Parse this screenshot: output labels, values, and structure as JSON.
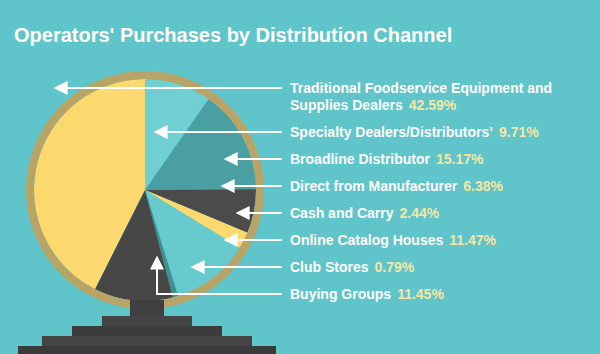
{
  "chart_data": {
    "type": "pie",
    "title": "Operators' Purchases by Distribution Channel",
    "categories": [
      "Traditional Foodservice Equipment and Supplies Dealers",
      "Specialty Dealers/Distributors’",
      "Broadline Distributor",
      "Direct from Manufacturer",
      "Cash and Carry",
      "Online Catalog Houses",
      "Club Stores",
      "Buying Groups"
    ],
    "values": [
      42.59,
      9.71,
      15.17,
      6.38,
      2.44,
      11.47,
      0.79,
      11.45
    ],
    "value_labels": [
      "42.59%",
      "9.71%",
      "15.17%",
      "6.38%",
      "2.44%",
      "11.47%",
      "0.79%",
      "11.45%"
    ],
    "colors": [
      "#fcd96f",
      "#6fcfd3",
      "#4a9fa3",
      "#4b4b4b",
      "#fcd96f",
      "#67cace",
      "#3f8f93",
      "#474747"
    ],
    "data_labels": true
  }
}
